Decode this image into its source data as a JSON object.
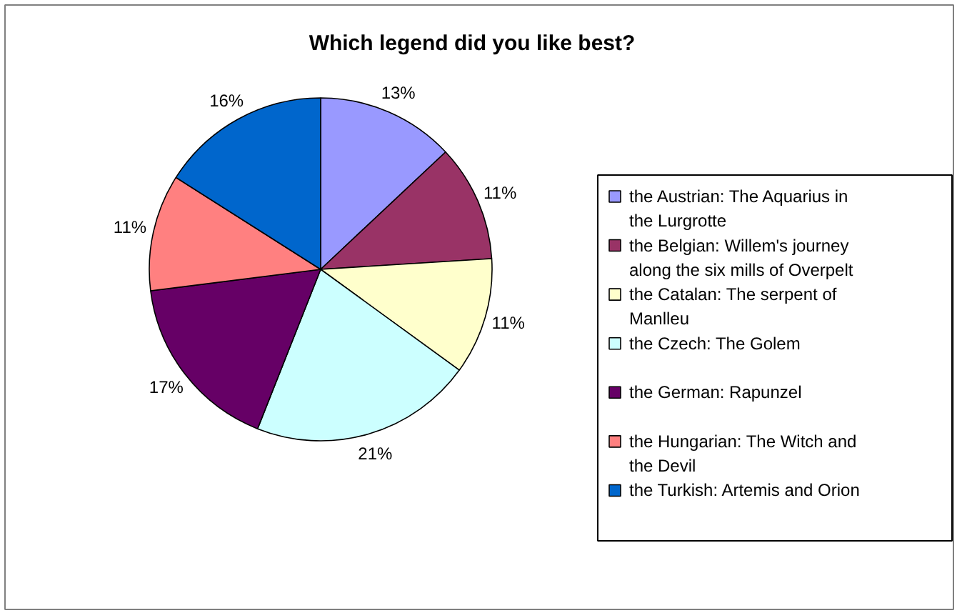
{
  "chart_data": {
    "type": "pie",
    "title": "Which legend did you like best?",
    "categories": [
      "the Austrian: The Aquarius in the Lurgrotte",
      "the Belgian: Willem's journey along the six mills of Overpelt",
      "the Catalan: The serpent of Manlleu",
      "the Czech: The Golem",
      "the German: Rapunzel",
      "the Hungarian: The Witch and the Devil",
      "the Turkish: Artemis and Orion"
    ],
    "values": [
      13,
      11,
      11,
      21,
      17,
      11,
      16
    ],
    "value_labels": [
      "13%",
      "11%",
      "11%",
      "21%",
      "17%",
      "11%",
      "16%"
    ],
    "colors": [
      "#9999ff",
      "#993366",
      "#ffffcc",
      "#ccffff",
      "#660066",
      "#ff8080",
      "#0066cc"
    ],
    "legend": "right"
  }
}
